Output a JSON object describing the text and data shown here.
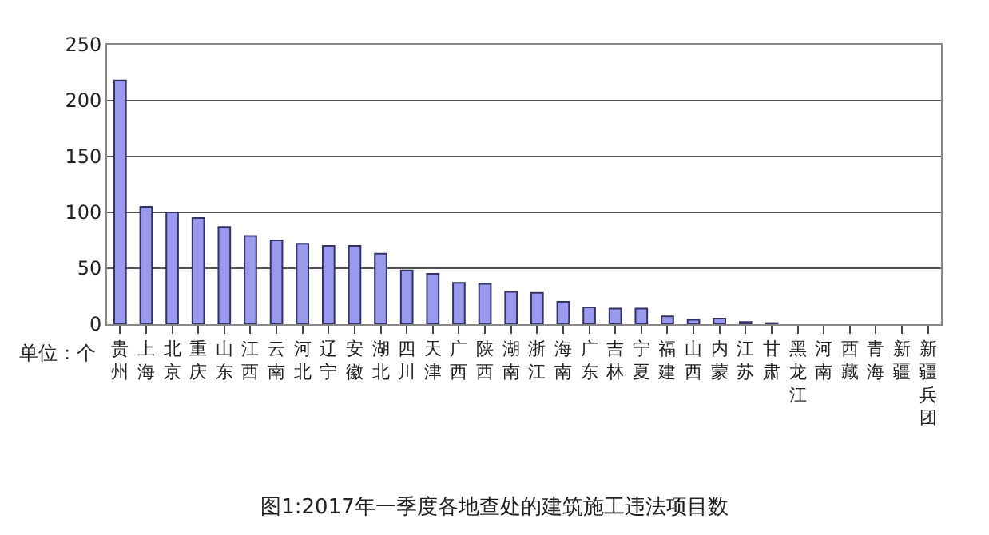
{
  "chart_data": {
    "type": "bar",
    "title": "图1:2017年一季度各地查处的建筑施工违法项目数",
    "categories": [
      "贵州",
      "上海",
      "北京",
      "重庆",
      "山东",
      "江西",
      "云南",
      "河北",
      "辽宁",
      "安徽",
      "湖北",
      "四川",
      "天津",
      "广西",
      "陕西",
      "湖南",
      "浙江",
      "海南",
      "广东",
      "吉林",
      "宁夏",
      "福建",
      "山西",
      "内蒙",
      "江苏",
      "甘肃",
      "黑龙江",
      "河南",
      "西藏",
      "青海",
      "新疆",
      "新疆兵团"
    ],
    "values": [
      218,
      105,
      100,
      95,
      87,
      79,
      75,
      72,
      70,
      70,
      63,
      48,
      45,
      37,
      36,
      29,
      28,
      20,
      15,
      14,
      14,
      7,
      4,
      5,
      2,
      1,
      0,
      0,
      0,
      0,
      0,
      0
    ],
    "color": "#9999ee",
    "ylim": [
      0,
      250
    ],
    "yticks": [
      0,
      50,
      100,
      150,
      200,
      250
    ],
    "grid": "y",
    "annotations": [
      "单位：个"
    ]
  }
}
